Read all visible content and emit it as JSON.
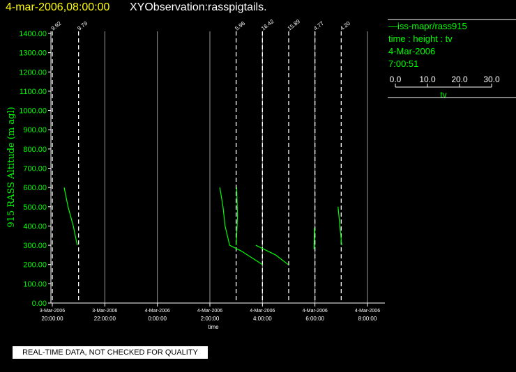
{
  "header": {
    "date_time": "4-mar-2006,08:00:00",
    "observation": "XYObservation:rasspigtails."
  },
  "legend": {
    "series_label": "iss-mapr/rass915",
    "line2": "time : height : tv",
    "line3": "4-Mar-2006",
    "line4": "7:00:51",
    "scale_ticks": [
      "0.0",
      "10.0",
      "20.0",
      "30.0"
    ],
    "scale_label": "tv"
  },
  "footer": {
    "note": "REAL-TIME DATA, NOT CHECKED FOR QUALITY"
  },
  "colors": {
    "background": "#000000",
    "data": "#00ff00",
    "text": "#ffffff",
    "title": "#ffff00"
  },
  "chart_data": {
    "type": "line",
    "ylabel": "915 RASS Altitude (m agl)",
    "xlabel": "time",
    "ylim": [
      0,
      1400
    ],
    "yticks": [
      "0.00",
      "100.00",
      "200.00",
      "300.00",
      "400.00",
      "500.00",
      "600.00",
      "700.00",
      "800.00",
      "900.00",
      "1000.00",
      "1100.00",
      "1200.00",
      "1300.00",
      "1400.00"
    ],
    "xlim": [
      -4.0,
      8.5
    ],
    "xticks": [
      {
        "x": -4,
        "date": "3-Mar-2006",
        "time": "20:00:00"
      },
      {
        "x": -2,
        "date": "3-Mar-2006",
        "time": "22:00:00"
      },
      {
        "x": 0,
        "date": "4-Mar-2006",
        "time": "0:00:00"
      },
      {
        "x": 2,
        "date": "4-Mar-2006",
        "time": "2:00:00"
      },
      {
        "x": 4,
        "date": "4-Mar-2006",
        "time": "4:00:00"
      },
      {
        "x": 6,
        "date": "4-Mar-2006",
        "time": "6:00:00"
      },
      {
        "x": 8,
        "date": "4-Mar-2006",
        "time": "8:00:00"
      }
    ],
    "grid_solid_x": [
      -2,
      0,
      2,
      4,
      6,
      8
    ],
    "profiles": [
      {
        "x": -4.0,
        "label": "9.92"
      },
      {
        "x": -3.0,
        "label": "9.79"
      },
      {
        "x": 3.0,
        "label": "5.96"
      },
      {
        "x": 4.0,
        "label": "16.42"
      },
      {
        "x": 5.0,
        "label": "15.89"
      },
      {
        "x": 6.0,
        "label": "4.77"
      },
      {
        "x": 7.0,
        "label": "4.20"
      }
    ],
    "series": [
      {
        "points": [
          [
            -3.55,
            600
          ],
          [
            -3.4,
            500
          ],
          [
            -3.2,
            400
          ],
          [
            -3.05,
            300
          ]
        ]
      },
      {
        "points": [
          [
            2.38,
            600
          ],
          [
            2.5,
            500
          ],
          [
            2.58,
            400
          ],
          [
            2.75,
            300
          ],
          [
            3.2,
            270
          ],
          [
            4.0,
            200
          ]
        ]
      },
      {
        "points": [
          [
            3.02,
            600
          ],
          [
            3.05,
            450
          ],
          [
            3.0,
            300
          ]
        ]
      },
      {
        "points": [
          [
            3.75,
            300
          ],
          [
            4.5,
            250
          ],
          [
            4.98,
            200
          ]
        ]
      },
      {
        "points": [
          [
            5.98,
            390
          ],
          [
            5.96,
            280
          ]
        ]
      },
      {
        "points": [
          [
            6.88,
            500
          ],
          [
            6.95,
            400
          ],
          [
            7.02,
            300
          ]
        ]
      }
    ]
  }
}
